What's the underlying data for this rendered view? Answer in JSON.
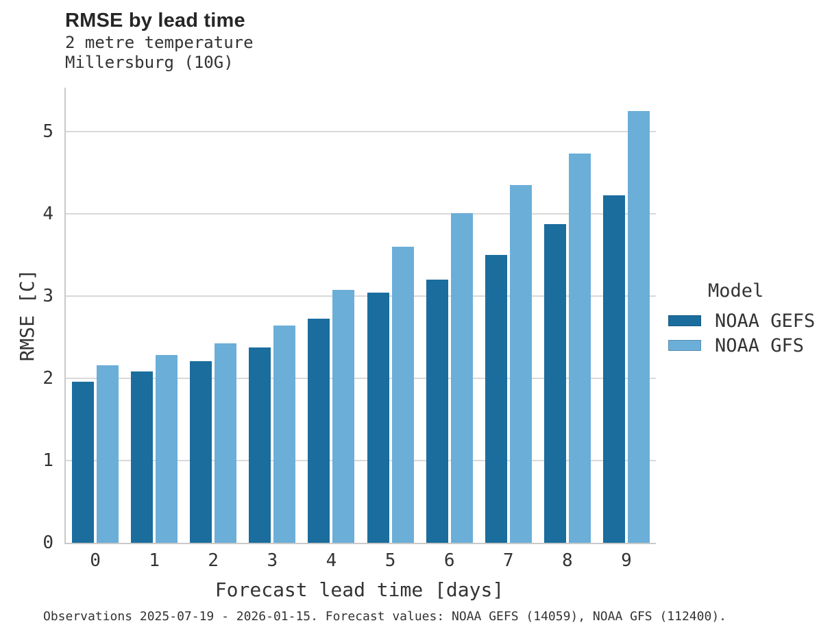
{
  "chart_data": {
    "type": "bar",
    "title": "RMSE by lead time",
    "subtitle_lines": [
      "2 metre temperature",
      "Millersburg (10G)"
    ],
    "xlabel": "Forecast lead time [days]",
    "ylabel": "RMSE [C]",
    "legend_title": "Model",
    "legend_position": "right",
    "categories": [
      "0",
      "1",
      "2",
      "3",
      "4",
      "5",
      "6",
      "7",
      "8",
      "9"
    ],
    "yticks": [
      "0",
      "1",
      "2",
      "3",
      "4",
      "5"
    ],
    "ylim": [
      0,
      5.53
    ],
    "grid": "horizontal",
    "series": [
      {
        "name": "NOAA GEFS",
        "color": "#1A6D9D",
        "values": [
          1.96,
          2.08,
          2.21,
          2.37,
          2.72,
          3.04,
          3.2,
          3.5,
          3.87,
          4.22
        ]
      },
      {
        "name": "NOAA GFS",
        "color": "#6BAED8",
        "values": [
          2.16,
          2.28,
          2.42,
          2.64,
          3.07,
          3.6,
          4.01,
          4.35,
          4.73,
          5.25
        ]
      }
    ],
    "caption": "Observations 2025-07-19 - 2026-01-15. Forecast values: NOAA GEFS (14059), NOAA GFS (112400)."
  },
  "colors": {
    "background": "#ffffff",
    "text": "#333333",
    "title_text": "#262626",
    "gridline": "#d9d9d9",
    "axis_line": "#c9c9c9",
    "noaa_gefs": "#1A6D9D",
    "noaa_gfs": "#6BAED8"
  }
}
